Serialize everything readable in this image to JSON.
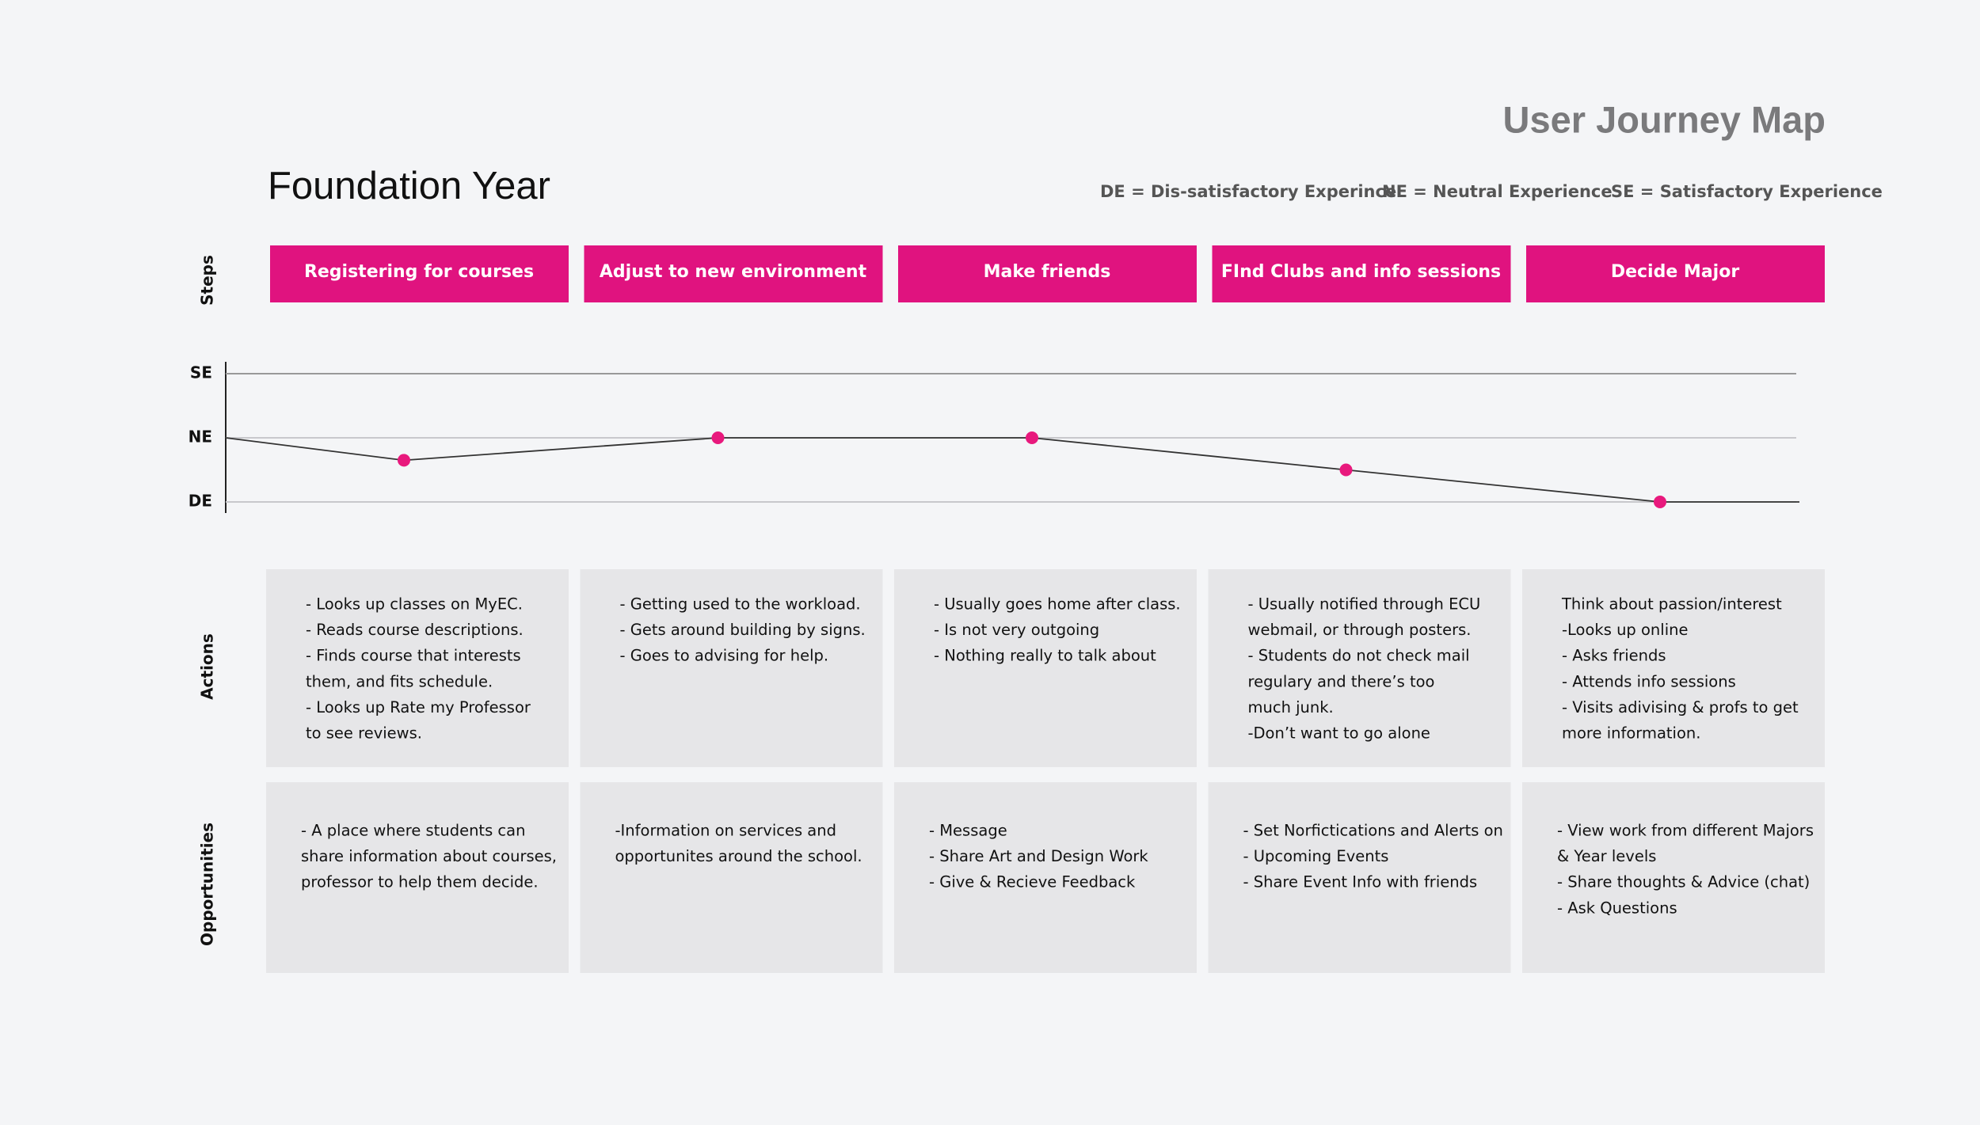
{
  "header": {
    "title": "User Journey Map",
    "subtitle": "Foundation Year",
    "legend": [
      "DE = Dis-satisfactory Experince",
      "NE = Neutral Experience",
      "SE = Satisfactory Experience"
    ]
  },
  "row_labels": {
    "steps": "Steps",
    "actions": "Actions",
    "opportunities": "Opportunities"
  },
  "emotion_scale": {
    "ylim": [
      0,
      2
    ],
    "yticks": [
      {
        "value": 0,
        "label": "DE"
      },
      {
        "value": 1,
        "label": "NE"
      },
      {
        "value": 2,
        "label": "SE"
      }
    ],
    "line_start": 1,
    "line_end": 0,
    "color": "#e8197d"
  },
  "steps": [
    {
      "label": "Registering for courses",
      "emotion": 0.65,
      "actions": [
        "- Looks up classes on MyEC.",
        "- Reads course descriptions.",
        "- Finds course that interests",
        "them, and fits schedule.",
        "- Looks up Rate my Professor",
        "to see reviews."
      ],
      "opportunities": [
        "- A place where students can",
        "share information about courses,",
        "professor to help them decide."
      ]
    },
    {
      "label": "Adjust to new environment",
      "emotion": 1,
      "actions": [
        "- Getting used to the workload.",
        "- Gets around building by signs.",
        "- Goes to advising for help."
      ],
      "opportunities": [
        "-Information on services and",
        "opportunites around the school."
      ]
    },
    {
      "label": "Make friends",
      "emotion": 1,
      "actions": [
        "- Usually goes home after class.",
        "- Is not very outgoing",
        "- Nothing really to talk about"
      ],
      "opportunities": [
        "- Message",
        "- Share Art and Design Work",
        "- Give & Recieve Feedback"
      ]
    },
    {
      "label": "FInd Clubs and info sessions",
      "emotion": 0.5,
      "actions": [
        "- Usually notified through ECU",
        "webmail, or through posters.",
        "- Students do not check mail",
        "regulary and there’s too",
        "much junk.",
        "-Don’t want to go alone"
      ],
      "opportunities": [
        "- Set Norfictications and Alerts on",
        "- Upcoming Events",
        "- Share Event Info with friends"
      ]
    },
    {
      "label": "Decide Major",
      "emotion": 0,
      "actions": [
        "Think about passion/interest",
        "-Looks up online",
        "- Asks friends",
        "- Attends info sessions",
        "- Visits adivising & profs to get",
        "more information."
      ],
      "opportunities": [
        "- View work from different Majors",
        "& Year levels",
        "- Share thoughts & Advice (chat)",
        "- Ask Questions"
      ]
    }
  ]
}
